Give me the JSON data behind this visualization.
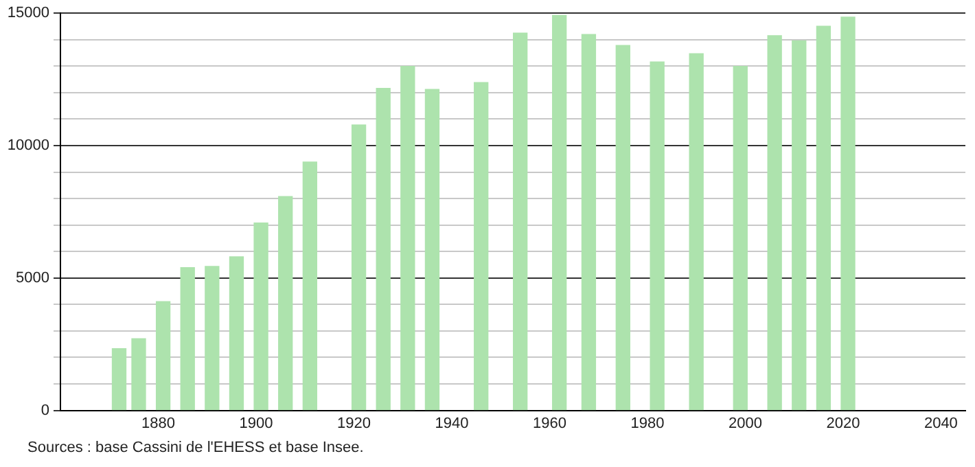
{
  "chart_data": {
    "type": "bar",
    "x": [
      1872,
      1876,
      1881,
      1886,
      1891,
      1896,
      1901,
      1906,
      1911,
      1921,
      1926,
      1931,
      1936,
      1946,
      1954,
      1962,
      1968,
      1975,
      1982,
      1990,
      1999,
      2006,
      2011,
      2016,
      2021
    ],
    "values": [
      2330,
      2710,
      4110,
      5390,
      5440,
      5800,
      7080,
      8080,
      9380,
      10780,
      12160,
      12990,
      12120,
      12380,
      14250,
      14920,
      14200,
      13780,
      13160,
      13470,
      12990,
      14150,
      13960,
      14510,
      14850
    ],
    "color": "#ade3ad",
    "xlim": [
      1860,
      2045
    ],
    "xticks": [
      1880,
      1900,
      1920,
      1940,
      1960,
      1980,
      2000,
      2020,
      2040
    ],
    "ylim": [
      0,
      15000
    ],
    "yticks": [
      0,
      {
        "value": 1000,
        "label": null
      },
      {
        "value": 2000,
        "label": null
      },
      {
        "value": 3000,
        "label": null
      },
      {
        "value": 4000,
        "label": null
      },
      5000,
      {
        "value": 6000,
        "label": null
      },
      {
        "value": 7000,
        "label": null
      },
      {
        "value": 8000,
        "label": null
      },
      {
        "value": 9000,
        "label": null
      },
      10000,
      {
        "value": 11000,
        "label": null
      },
      {
        "value": 12000,
        "label": null
      },
      {
        "value": 13000,
        "label": null
      },
      {
        "value": 14000,
        "label": null
      },
      15000
    ],
    "grid": "y",
    "legend": false,
    "annotations": [
      "Sources : base Cassini de l'EHESS et base Insee."
    ]
  }
}
